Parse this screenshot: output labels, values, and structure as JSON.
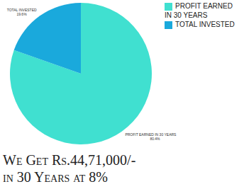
{
  "chart_data": {
    "type": "pie",
    "title": "We Get Rs.44,71,000/-\nin 30 Years at 8%",
    "categories": [
      "PROFIT EARNED IN 30 YEARS",
      "TOTAL INVESTED"
    ],
    "values": [
      80.4,
      19.6
    ],
    "value_labels": [
      "80.4%",
      "19.6%"
    ],
    "colors": [
      "#40e0d0",
      "#1aa9dc"
    ],
    "data_labels": true,
    "legend": "top-right"
  }
}
